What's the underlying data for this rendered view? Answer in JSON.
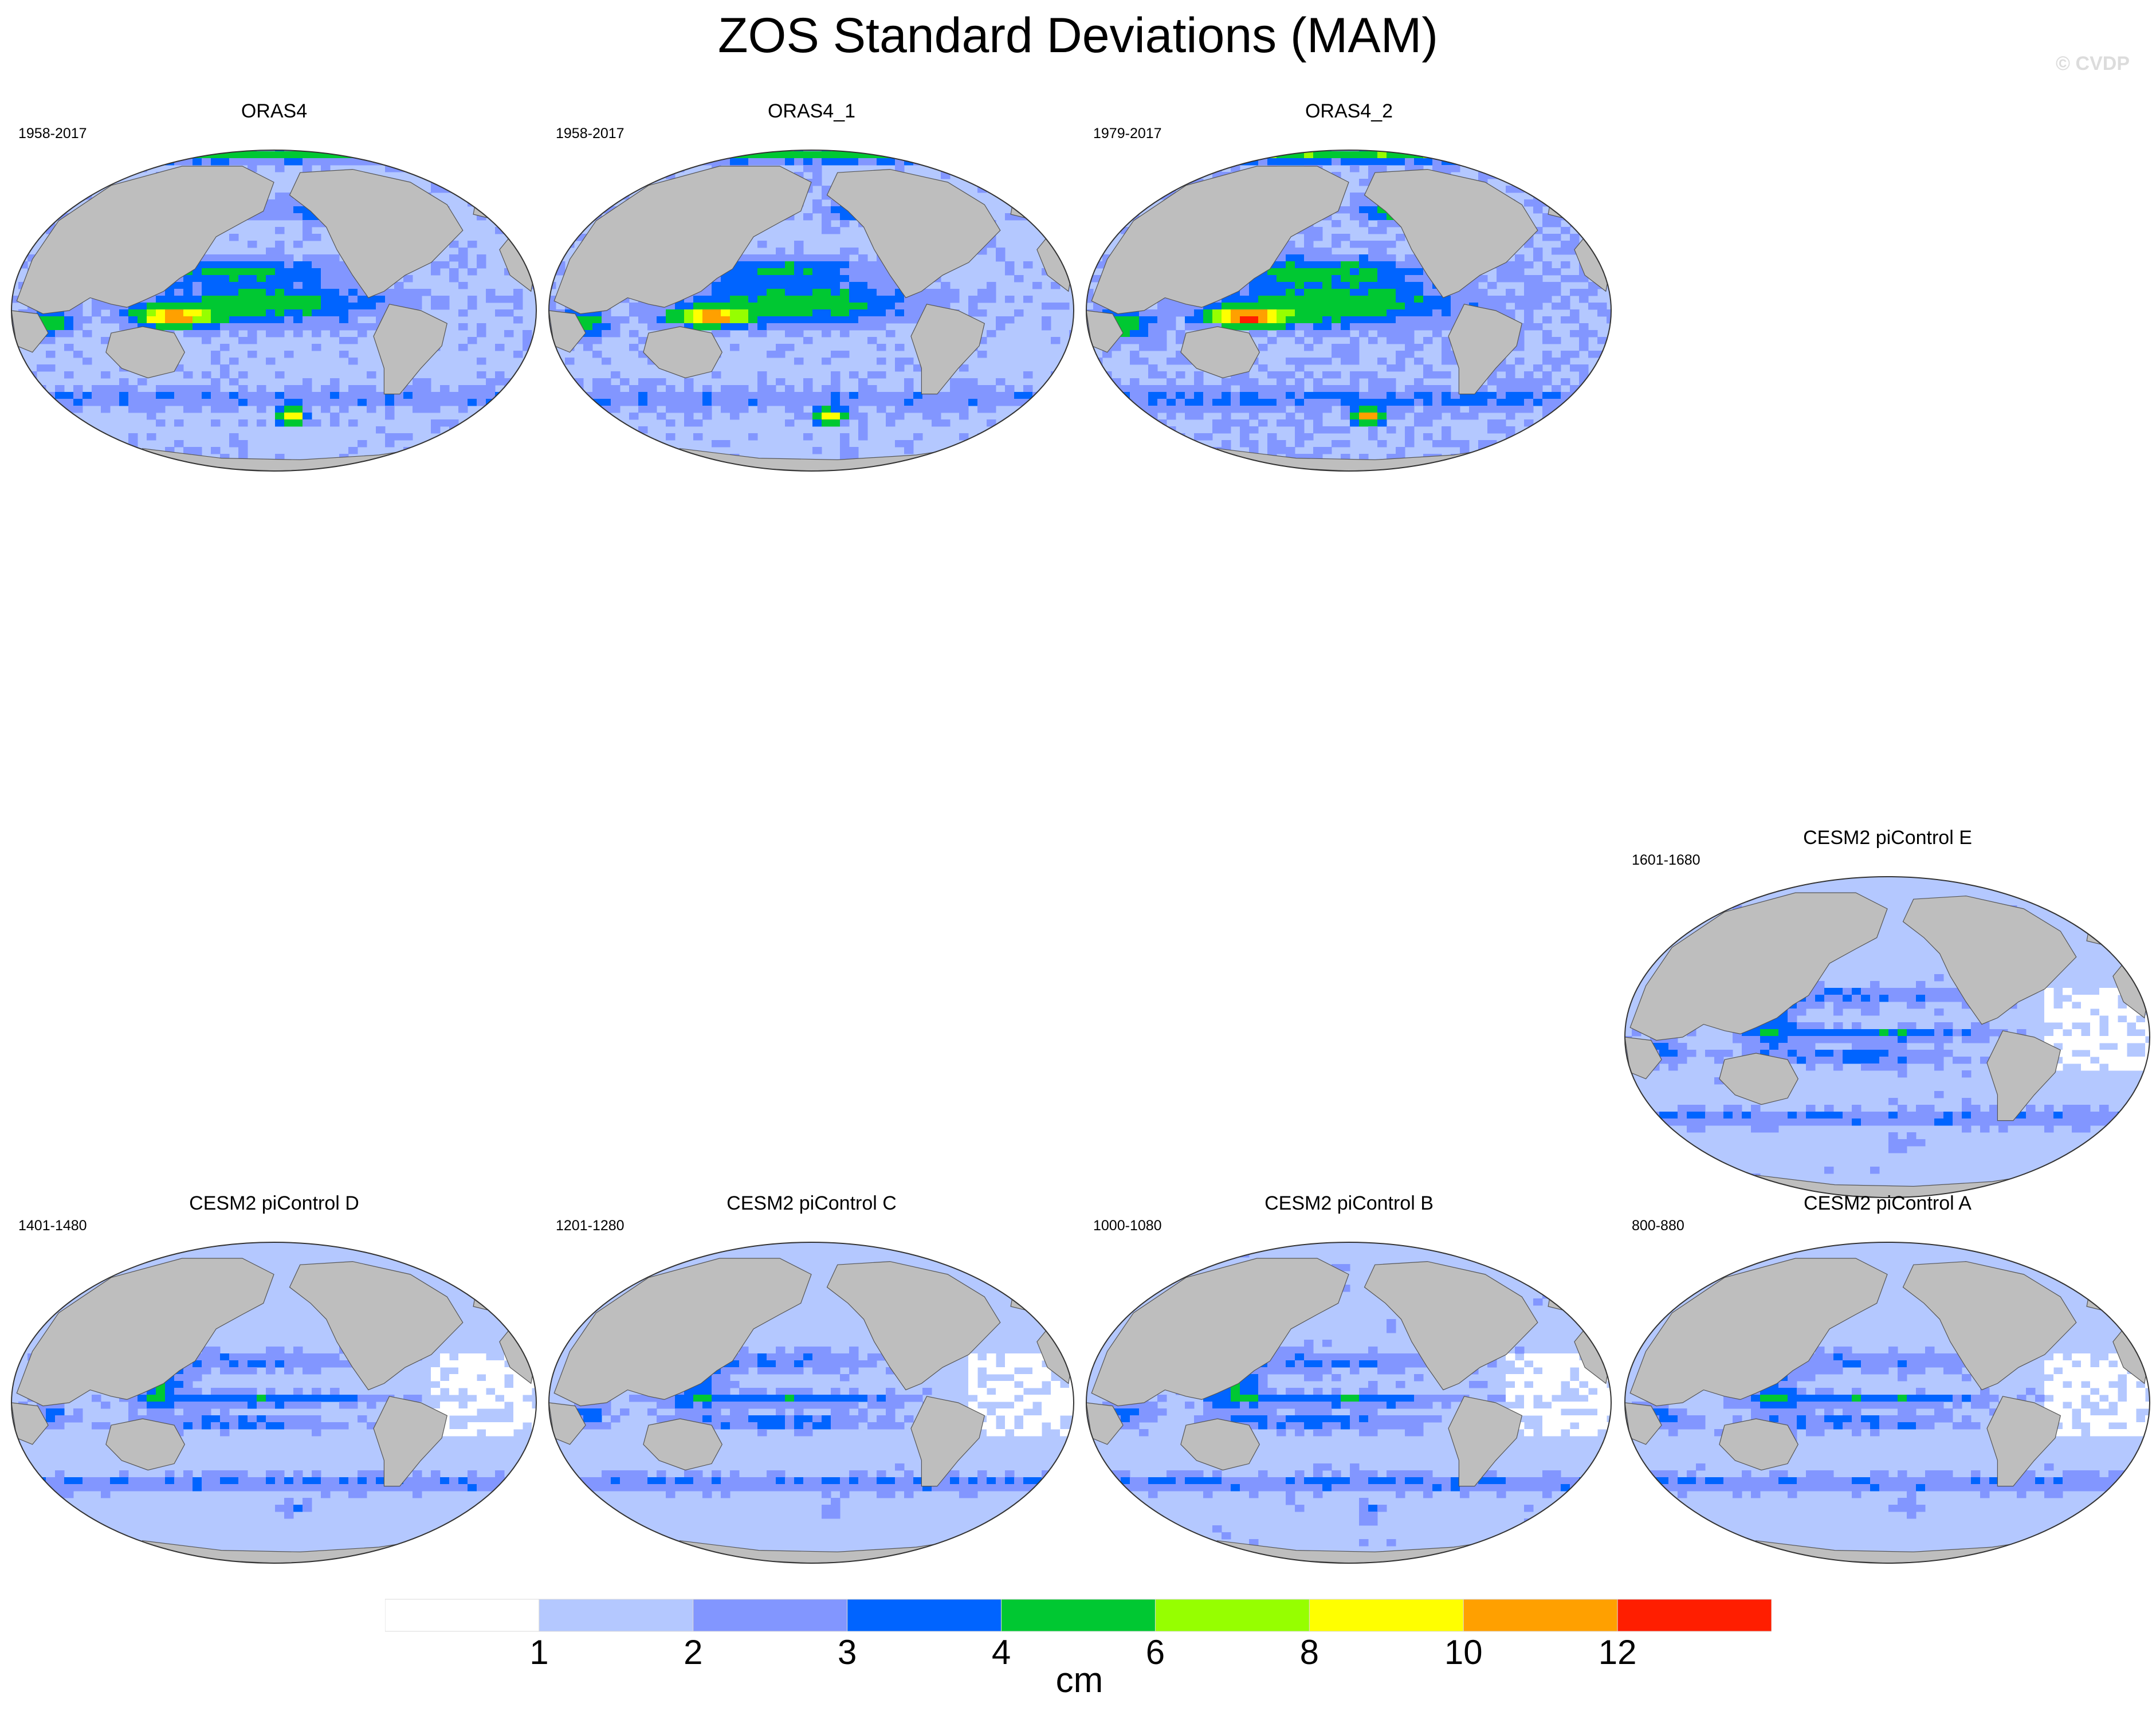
{
  "title": "ZOS Standard Deviations (MAM)",
  "watermark": "© CVDP",
  "chart_data": {
    "type": "heatmap",
    "variable": "ZOS",
    "season": "MAM",
    "statistic": "Standard Deviation",
    "units": "cm",
    "colorbar": {
      "levels": [
        1,
        2,
        3,
        4,
        6,
        8,
        10,
        12
      ],
      "labels": [
        "1",
        "2",
        "3",
        "4",
        "6",
        "8",
        "10",
        "12"
      ],
      "colors": [
        "#ffffff",
        "#b4c8ff",
        "#8296ff",
        "#0064ff",
        "#00c832",
        "#96ff00",
        "#ffff00",
        "#ffa000",
        "#ff1e00"
      ]
    },
    "land_color": "#bebebe",
    "panels": [
      {
        "id": "oras4",
        "title": "ORAS4",
        "years": "1958-2017",
        "pattern": "obs",
        "intensity": 1.0
      },
      {
        "id": "oras4-1",
        "title": "ORAS4_1",
        "years": "1958-2017",
        "pattern": "obs",
        "intensity": 1.0
      },
      {
        "id": "oras4-2",
        "title": "ORAS4_2",
        "years": "1979-2017",
        "pattern": "obs",
        "intensity": 1.12
      },
      {
        "id": "cesm2-e",
        "title": "CESM2 piControl E",
        "years": "1601-1680",
        "pattern": "model",
        "intensity": 0.92
      },
      {
        "id": "cesm2-d",
        "title": "CESM2 piControl D",
        "years": "1401-1480",
        "pattern": "model",
        "intensity": 0.9
      },
      {
        "id": "cesm2-c",
        "title": "CESM2 piControl C",
        "years": "1201-1280",
        "pattern": "model",
        "intensity": 0.9
      },
      {
        "id": "cesm2-b",
        "title": "CESM2 piControl B",
        "years": "1000-1080",
        "pattern": "model",
        "intensity": 0.93
      },
      {
        "id": "cesm2-a",
        "title": "CESM2 piControl A",
        "years": "800-880",
        "pattern": "model",
        "intensity": 0.9
      }
    ]
  }
}
